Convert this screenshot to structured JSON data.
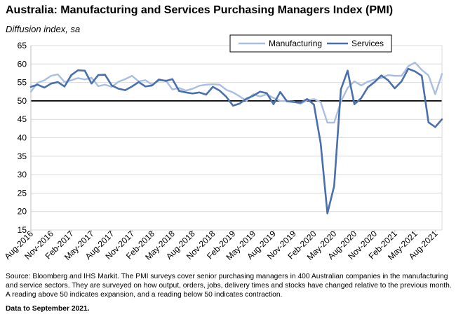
{
  "chart_data": {
    "type": "line",
    "title": "Australia:  Manufacturing and Services Purchasing Managers Index (PMI)",
    "subtitle": "Diffusion index, sa",
    "ylim": [
      15,
      65
    ],
    "yticks": [
      15,
      20,
      25,
      30,
      35,
      40,
      45,
      50,
      55,
      60,
      65
    ],
    "xtick_labels": [
      "Aug-2016",
      "Nov-2016",
      "Feb-2017",
      "May-2017",
      "Aug-2017",
      "Nov-2017",
      "Feb-2018",
      "May-2018",
      "Aug-2018",
      "Nov-2018",
      "Feb-2019",
      "May-2019",
      "Aug-2019",
      "Nov-2019",
      "Feb-2020",
      "May-2020",
      "Aug-2020",
      "Nov-2020",
      "Feb-2021",
      "May-2021",
      "Aug-2021"
    ],
    "x_start": "Aug-2016",
    "reference_line": 50,
    "legend_position": "top-right",
    "series": [
      {
        "name": "Manufacturing",
        "color": "#a9bfe0",
        "values": [
          52.5,
          54.9,
          55.6,
          56.8,
          57.2,
          55.1,
          55.6,
          56.2,
          55.8,
          56.3,
          54.0,
          54.4,
          53.8,
          55.2,
          55.9,
          56.8,
          55.3,
          55.6,
          54.4,
          55.5,
          55.6,
          53.1,
          53.5,
          52.8,
          53.3,
          54.1,
          54.4,
          54.5,
          54.4,
          53.0,
          52.3,
          51.2,
          50.0,
          51.8,
          51.2,
          51.8,
          50.8,
          50.0,
          50.0,
          49.8,
          49.2,
          50.2,
          50.5,
          49.7,
          44.1,
          44.1,
          49.8,
          53.5,
          55.3,
          54.2,
          55.2,
          55.8,
          56.2,
          57.0,
          56.8,
          56.8,
          59.4,
          60.4,
          58.4,
          56.9,
          51.8,
          57.3
        ]
      },
      {
        "name": "Services",
        "color": "#4a6fad",
        "values": [
          53.8,
          54.4,
          53.6,
          54.7,
          55.1,
          53.9,
          57.0,
          58.3,
          58.2,
          54.7,
          57.0,
          57.1,
          54.2,
          53.3,
          52.9,
          53.9,
          55.1,
          53.9,
          54.2,
          55.8,
          55.4,
          55.9,
          52.7,
          52.3,
          52.0,
          52.3,
          51.7,
          53.8,
          52.8,
          51.1,
          48.7,
          49.3,
          50.6,
          51.4,
          52.5,
          52.1,
          49.1,
          52.4,
          49.9,
          49.7,
          49.5,
          50.5,
          49.0,
          38.5,
          19.5,
          26.9,
          53.1,
          58.2,
          49.1,
          50.7,
          53.7,
          55.1,
          56.9,
          55.6,
          53.4,
          55.3,
          58.7,
          58.0,
          56.8,
          44.2,
          42.9,
          45.0
        ]
      }
    ]
  },
  "source_text": "Source: Bloomberg and IHS Markit.  The PMI surveys cover senior purchasing managers in 400 Australian companies in the manufacturing and service sectors.  They are surveyed on how output, orders, jobs, delivery times and stocks have changed relative to the previous month.  A reading above 50 indicates expansion, and a reading below 50 indicates contraction.",
  "data_note": "Data to September 2021."
}
